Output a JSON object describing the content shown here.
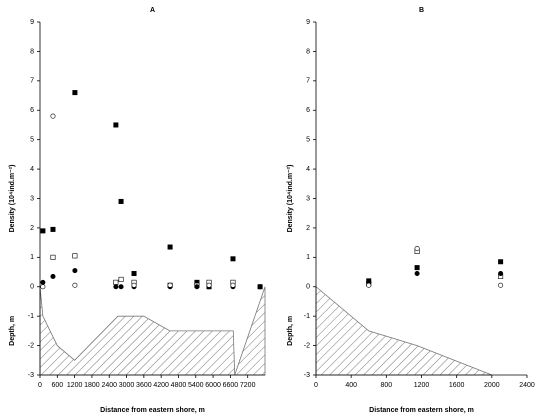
{
  "chart_data": [
    {
      "type": "scatter",
      "title": "A",
      "xlabel": "Distance from eastern shore, m",
      "ylabels": [
        "Density (10⁴ind.m⁻²)",
        "Depth, m"
      ],
      "x": [
        100,
        450,
        1210,
        2630,
        2810,
        3260,
        4510,
        5440,
        5860,
        6690,
        7630
      ],
      "series": [
        {
          "marker": "square-filled",
          "color": "#000000",
          "values": [
            1.9,
            1.95,
            6.6,
            5.5,
            2.9,
            0.45,
            1.35,
            0.15,
            0,
            0.95,
            0
          ]
        },
        {
          "marker": "square-open",
          "color": "#000000",
          "values": [
            null,
            1.0,
            1.05,
            0.15,
            0.25,
            0.15,
            0.05,
            0.05,
            0.15,
            0.15,
            null
          ]
        },
        {
          "marker": "circle-filled",
          "color": "#000000",
          "values": [
            0.15,
            0.35,
            0.55,
            0,
            0,
            0,
            0,
            0,
            0,
            0,
            0
          ]
        },
        {
          "marker": "circle-open",
          "color": "#000000",
          "values": [
            0,
            5.8,
            0.05,
            null,
            null,
            0.05,
            0.05,
            null,
            0.05,
            0.05,
            null
          ]
        }
      ],
      "depth_profile": {
        "x": [
          0,
          100,
          600,
          1200,
          2700,
          3600,
          4500,
          6700,
          6750,
          7800
        ],
        "values": [
          0,
          -1,
          -2,
          -2.5,
          -1,
          -1,
          -1.5,
          -1.5,
          -3,
          0
        ]
      },
      "xlim": [
        0,
        7800
      ],
      "xticks": [
        0,
        600,
        1200,
        1800,
        2400,
        3000,
        3600,
        4200,
        4800,
        5400,
        6000,
        6600,
        7200
      ],
      "ylim": [
        -3,
        9
      ],
      "yticks": [
        -3,
        -2,
        -1,
        0,
        1,
        2,
        3,
        4,
        5,
        6,
        7,
        8,
        9
      ]
    },
    {
      "type": "scatter",
      "title": "B",
      "xlabel": "Distance from eastern shore, m",
      "ylabels": [
        "Density (10⁴ind.m⁻²)",
        "Depth, m"
      ],
      "x": [
        600,
        1150,
        2100
      ],
      "series": [
        {
          "marker": "square-filled",
          "color": "#000000",
          "values": [
            0.2,
            0.65,
            0.85
          ]
        },
        {
          "marker": "square-open",
          "color": "#000000",
          "values": [
            0.1,
            1.2,
            0.35
          ]
        },
        {
          "marker": "circle-filled",
          "color": "#000000",
          "values": [
            0.15,
            0.45,
            0.45
          ]
        },
        {
          "marker": "circle-open",
          "color": "#000000",
          "values": [
            0.05,
            1.3,
            0.05
          ]
        }
      ],
      "depth_profile": {
        "x": [
          0,
          600,
          1150,
          2000
        ],
        "values": [
          0,
          -1.5,
          -2,
          -3
        ]
      },
      "xlim": [
        0,
        2400
      ],
      "xticks": [
        0,
        400,
        800,
        1200,
        1600,
        2000,
        2400
      ],
      "ylim": [
        -3,
        9
      ],
      "yticks": [
        -3,
        -2,
        -1,
        0,
        1,
        2,
        3,
        4,
        5,
        6,
        7,
        8,
        9
      ]
    }
  ]
}
